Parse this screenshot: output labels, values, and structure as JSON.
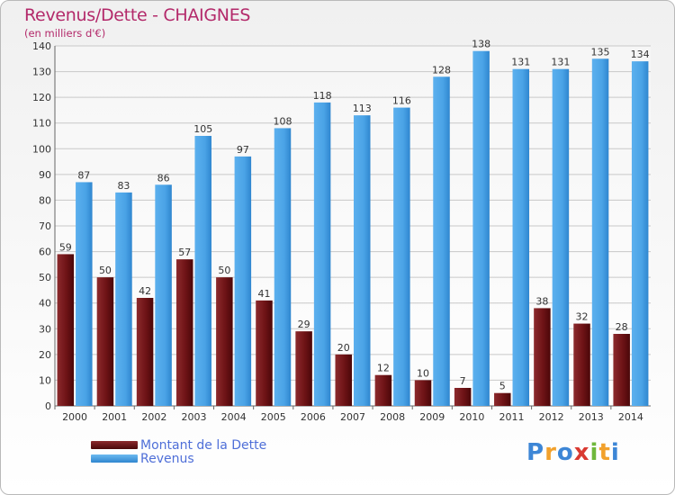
{
  "chart_data": {
    "type": "bar",
    "title": "Revenus/Dette - CHAIGNES",
    "subtitle": "(en milliers d'€)",
    "categories": [
      "2000",
      "2001",
      "2002",
      "2003",
      "2004",
      "2005",
      "2006",
      "2007",
      "2008",
      "2009",
      "2010",
      "2011",
      "2012",
      "2013",
      "2014"
    ],
    "series": [
      {
        "name": "Montant de la Dette",
        "color": "#7a1518",
        "values": [
          59,
          50,
          42,
          57,
          50,
          41,
          29,
          20,
          12,
          10,
          7,
          5,
          38,
          32,
          28
        ]
      },
      {
        "name": "Revenus",
        "color": "#4aa3e6",
        "values": [
          87,
          83,
          86,
          105,
          97,
          108,
          118,
          113,
          116,
          128,
          138,
          131,
          131,
          135,
          134
        ]
      }
    ],
    "ylim": [
      0,
      140
    ],
    "yticks": [
      0,
      10,
      20,
      30,
      40,
      50,
      60,
      70,
      80,
      90,
      100,
      110,
      120,
      130,
      140
    ],
    "grid": true,
    "legend_position": "bottom-left"
  },
  "legend": {
    "dette_label": "Montant de la Dette",
    "revenus_label": "Revenus"
  },
  "logo": {
    "letters": [
      "P",
      "r",
      "o",
      "x",
      "i",
      "t",
      "i"
    ],
    "colors": [
      "#3d86d6",
      "#f2a12c",
      "#3d86d6",
      "#d93a32",
      "#6fb83c",
      "#f2a12c",
      "#3d86d6"
    ]
  }
}
